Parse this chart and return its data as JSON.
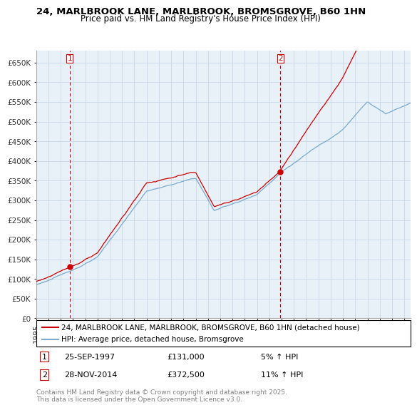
{
  "title1": "24, MARLBROOK LANE, MARLBROOK, BROMSGROVE, B60 1HN",
  "title2": "Price paid vs. HM Land Registry's House Price Index (HPI)",
  "ylim": [
    0,
    680000
  ],
  "yticks": [
    0,
    50000,
    100000,
    150000,
    200000,
    250000,
    300000,
    350000,
    400000,
    450000,
    500000,
    550000,
    600000,
    650000
  ],
  "xlim_start": 1995.0,
  "xlim_end": 2025.5,
  "sale1_date": 1997.73,
  "sale1_price": 131000,
  "sale2_date": 2014.91,
  "sale2_price": 372500,
  "hpi_color": "#7aaad0",
  "price_color": "#cc0000",
  "grid_color": "#c8d8e8",
  "bg_color": "#e8f0f8",
  "annotation_color": "#cc0000",
  "legend1": "24, MARLBROOK LANE, MARLBROOK, BROMSGROVE, B60 1HN (detached house)",
  "legend2": "HPI: Average price, detached house, Bromsgrove",
  "note1_date": "25-SEP-1997",
  "note1_price": "£131,000",
  "note1_hpi": "5% ↑ HPI",
  "note2_date": "28-NOV-2014",
  "note2_price": "£372,500",
  "note2_hpi": "11% ↑ HPI",
  "footer": "Contains HM Land Registry data © Crown copyright and database right 2025.\nThis data is licensed under the Open Government Licence v3.0.",
  "title_fontsize": 9.5,
  "subtitle_fontsize": 8.5,
  "tick_fontsize": 7.5,
  "legend_fontsize": 7.5,
  "note_fontsize": 8,
  "footer_fontsize": 6.5
}
